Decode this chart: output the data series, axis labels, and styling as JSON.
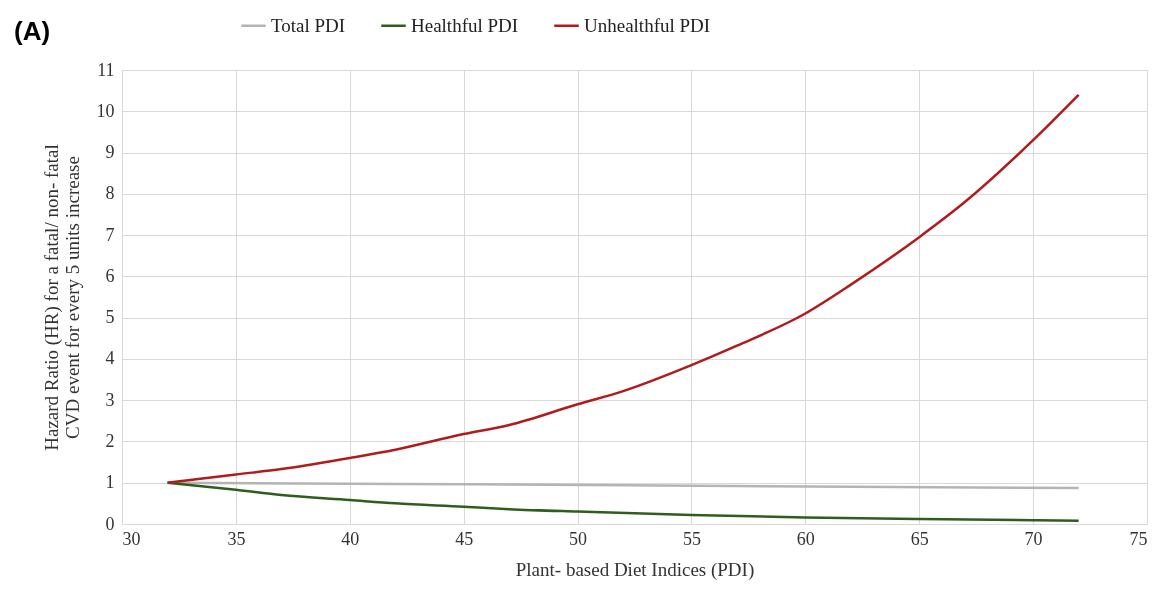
{
  "chart_data": {
    "type": "line",
    "title": "(A)",
    "xlabel": "Plant- based Diet Indices (PDI)",
    "ylabel": "Hazard Ratio (HR) for a fatal/ non- fatal\nCVD event for every 5 units increase",
    "xlim": [
      30,
      75
    ],
    "xticks": [
      30,
      35,
      40,
      45,
      50,
      55,
      60,
      65,
      70,
      75
    ],
    "ylim": [
      0,
      11
    ],
    "yticks": [
      0,
      1,
      2,
      3,
      4,
      5,
      6,
      7,
      8,
      9,
      10,
      11
    ],
    "grid": true,
    "legend": "top",
    "marker": "none",
    "line_style": "solid",
    "series": [
      {
        "name": "Total PDI",
        "color": "#b4b4b4",
        "x": [
          32,
          42,
          52,
          62,
          72
        ],
        "values": [
          1,
          0.97,
          0.94,
          0.9,
          0.87
        ]
      },
      {
        "name": "Healthful PDI",
        "color": "#2e5e1e",
        "x": [
          32,
          35,
          37,
          40,
          42,
          45,
          47,
          50,
          55,
          60,
          65,
          70,
          72
        ],
        "values": [
          1,
          0.83,
          0.7,
          0.58,
          0.5,
          0.42,
          0.36,
          0.3,
          0.22,
          0.16,
          0.12,
          0.09,
          0.08
        ]
      },
      {
        "name": "Unhealthful PDI",
        "color": "#b01c1c",
        "x": [
          32,
          35,
          37,
          40,
          42,
          45,
          47,
          50,
          52,
          55,
          57,
          60,
          62,
          65,
          67,
          70,
          72
        ],
        "values": [
          1,
          1.2,
          1.33,
          1.6,
          1.8,
          2.18,
          2.4,
          2.9,
          3.22,
          3.85,
          4.32,
          5.1,
          5.8,
          6.95,
          7.8,
          9.3,
          10.4
        ]
      }
    ]
  }
}
